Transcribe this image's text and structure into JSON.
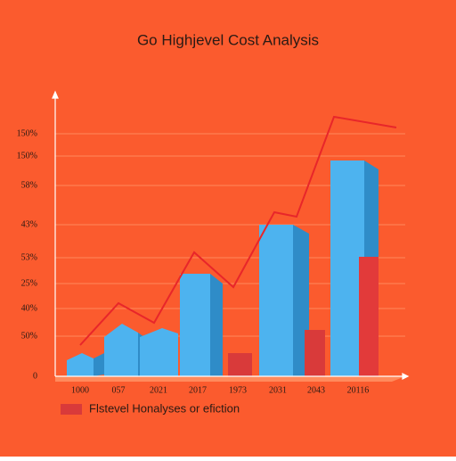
{
  "title": "Go Highjevel Cost Analysis",
  "y_axis_labels": [
    "150%",
    "150%",
    "58%",
    "43%",
    "53%",
    "25%",
    "40%",
    "50%",
    "0"
  ],
  "x_axis_labels": [
    "1000",
    "057",
    "2021",
    "2017",
    "1973",
    "2031",
    "2043",
    "20116"
  ],
  "legend": {
    "label": "Flstevel Honalyses or efiction"
  }
}
